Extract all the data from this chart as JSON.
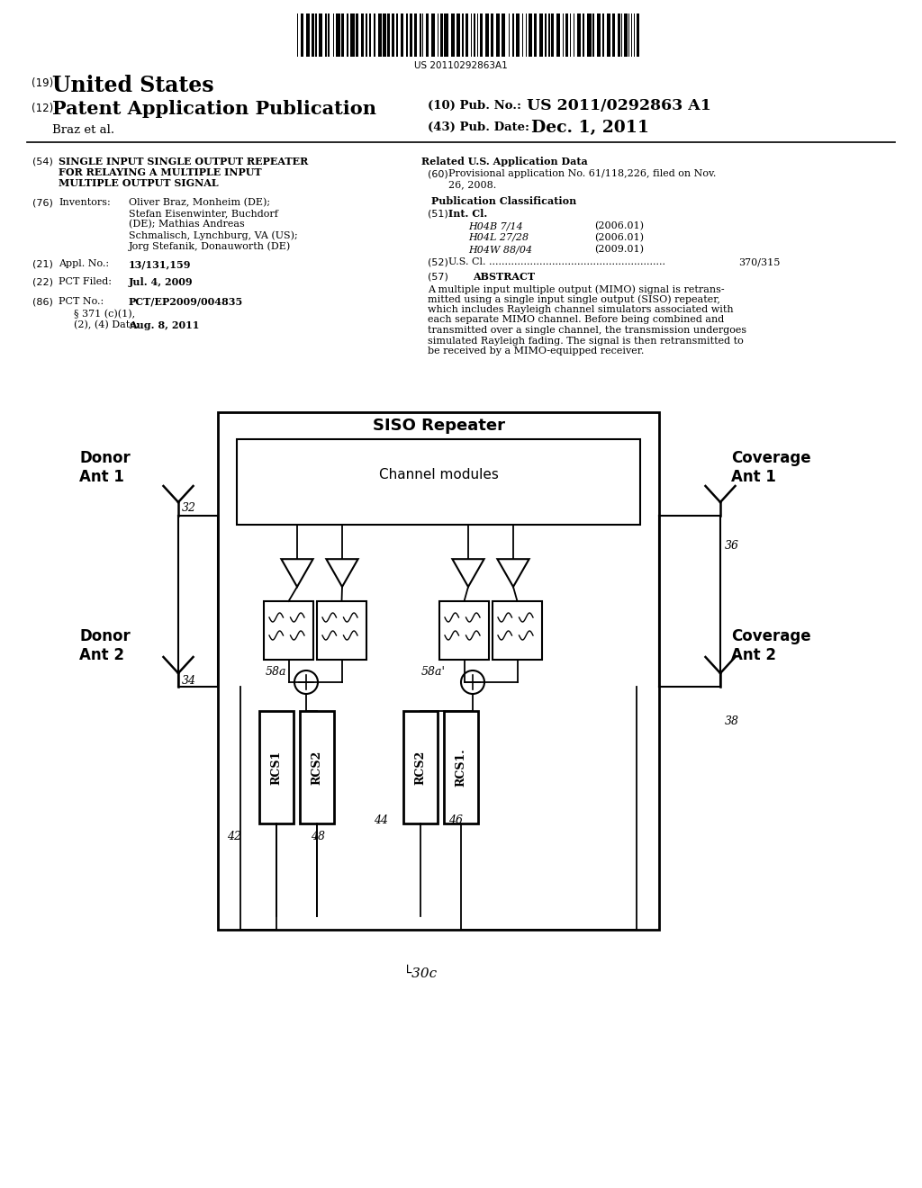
{
  "bg_color": "#ffffff",
  "barcode_text": "US 20110292863A1",
  "patent_number_label": "(19)",
  "patent_number_text": "United States",
  "pub_label": "(12)",
  "pub_text": "Patent Application Publication",
  "pub_no_label": "(10) Pub. No.:",
  "pub_no_value": "US 2011/0292863 A1",
  "authors": "Braz et al.",
  "pub_date_label": "(43) Pub. Date:",
  "pub_date_value": "Dec. 1, 2011",
  "field54_label": "(54)",
  "field54_text_line1": "SINGLE INPUT SINGLE OUTPUT REPEATER",
  "field54_text_line2": "FOR RELAYING A MULTIPLE INPUT",
  "field54_text_line3": "MULTIPLE OUTPUT SIGNAL",
  "field76_label": "(76)",
  "field76_title": "Inventors:",
  "inv_line1": "Oliver Braz, Monheim (DE);",
  "inv_line2": "Stefan Eisenwinter, Buchdorf",
  "inv_line3": "(DE); Mathias Andreas",
  "inv_line4": "Schmalisch, Lynchburg, VA (US);",
  "inv_line5": "Jorg Stefanik, Donauworth (DE)",
  "field21_label": "(21)",
  "field21_title": "Appl. No.:",
  "field21_value": "13/131,159",
  "field22_label": "(22)",
  "field22_title": "PCT Filed:",
  "field22_value": "Jul. 4, 2009",
  "field86_label": "(86)",
  "field86_title": "PCT No.:",
  "field86_value": "PCT/EP2009/004835",
  "field86b_line1": "§ 371 (c)(1),",
  "field86b_line2": "(2), (4) Date:",
  "field86b_value": "Aug. 8, 2011",
  "related_title": "Related U.S. Application Data",
  "field60_label": "(60)",
  "field60_text": "Provisional application No. 61/118,226, filed on Nov.\n26, 2008.",
  "pub_class_title": "Publication Classification",
  "field51_label": "(51)",
  "field51_title": "Int. Cl.",
  "field51_items": [
    "H04B 7/14",
    "H04L 27/28",
    "H04W 88/04"
  ],
  "field51_years": [
    "(2006.01)",
    "(2006.01)",
    "(2009.01)"
  ],
  "field52_label": "(52)",
  "field52_title": "U.S. Cl.",
  "field52_dots": "........................................................",
  "field52_value": "370/315",
  "field57_label": "(57)",
  "field57_title": "ABSTRACT",
  "abstract_line1": "A multiple input multiple output (MIMO) signal is retrans-",
  "abstract_line2": "mitted using a single input single output (SISO) repeater,",
  "abstract_line3": "which includes Rayleigh channel simulators associated with",
  "abstract_line4": "each separate MIMO channel. Before being combined and",
  "abstract_line5": "transmitted over a single channel, the transmission undergoes",
  "abstract_line6": "simulated Rayleigh fading. The signal is then retransmitted to",
  "abstract_line7": "be received by a MIMO-equipped receiver.",
  "diagram_label": "30c",
  "siso_label": "SISO Repeater",
  "cm_label": "Channel modules",
  "donor1_label": "Donor\nAnt 1",
  "donor2_label": "Donor\nAnt 2",
  "cov1_label": "Coverage\nAnt 1",
  "cov2_label": "Coverage\nAnt 2",
  "label_32": "32",
  "label_34": "34",
  "label_36": "36",
  "label_38": "38",
  "label_42": "42",
  "label_44": "44",
  "label_46": "46",
  "label_48": "48",
  "label_58a": "58a",
  "label_58ap": "58a'"
}
